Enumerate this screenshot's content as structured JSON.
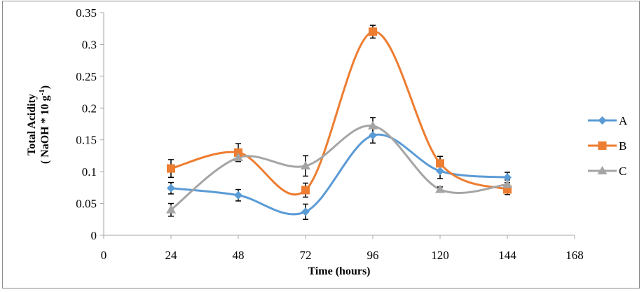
{
  "chart_data": {
    "type": "line",
    "title": "",
    "xlabel": "Time (hours)",
    "ylabel_line1": "Total Acidity",
    "ylabel_line2": "( NaOH * 10 g",
    "ylabel_sup": "-1",
    "ylabel_close": ")",
    "xlim": [
      0,
      168
    ],
    "ylim": [
      0,
      0.35
    ],
    "xticks": [
      0,
      24,
      48,
      72,
      96,
      120,
      144,
      168
    ],
    "yticks": [
      0,
      0.05,
      0.1,
      0.15,
      0.2,
      0.25,
      0.3,
      0.35
    ],
    "ytick_labels": [
      "0",
      "0.05",
      "0.1",
      "0.15",
      "0.2",
      "0.25",
      "0.3",
      "0.35"
    ],
    "grid": false,
    "legend_position": "right",
    "x": [
      24,
      48,
      72,
      96,
      120,
      144
    ],
    "series": [
      {
        "name": "A",
        "color": "#5B9BD5",
        "marker": "diamond",
        "values": [
          0.074,
          0.063,
          0.037,
          0.157,
          0.101,
          0.091
        ],
        "errors": [
          0.009,
          0.009,
          0.012,
          0.012,
          0.012,
          0.008
        ]
      },
      {
        "name": "B",
        "color": "#ED7D31",
        "marker": "square",
        "values": [
          0.105,
          0.13,
          0.071,
          0.32,
          0.113,
          0.072
        ],
        "errors": [
          0.014,
          0.014,
          0.011,
          0.01,
          0.011,
          0.008
        ]
      },
      {
        "name": "C",
        "color": "#A5A5A5",
        "marker": "triangle",
        "values": [
          0.04,
          0.122,
          0.109,
          0.172,
          0.072,
          0.08
        ],
        "errors": [
          0.01,
          0.006,
          0.016,
          0.013,
          0.004,
          0.007
        ]
      }
    ]
  }
}
